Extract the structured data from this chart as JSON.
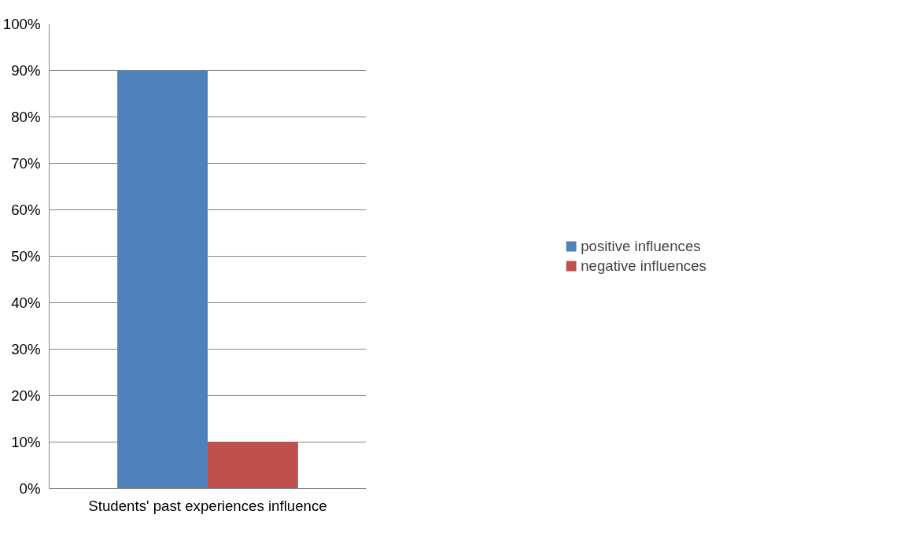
{
  "chart_data": {
    "type": "bar",
    "categories": [
      "Students' past experiences influence"
    ],
    "series": [
      {
        "name": "positive influences",
        "color": "#4f81bd",
        "values": [
          90
        ]
      },
      {
        "name": "negative influences",
        "color": "#c0504d",
        "values": [
          10
        ]
      }
    ],
    "ylim": [
      0,
      100
    ],
    "yticks": [
      {
        "value": 0,
        "label": "0%"
      },
      {
        "value": 10,
        "label": "10%"
      },
      {
        "value": 20,
        "label": "20%"
      },
      {
        "value": 30,
        "label": "30%"
      },
      {
        "value": 40,
        "label": "40%"
      },
      {
        "value": 50,
        "label": "50%"
      },
      {
        "value": 60,
        "label": "60%"
      },
      {
        "value": 70,
        "label": "70%"
      },
      {
        "value": 80,
        "label": "80%"
      },
      {
        "value": 90,
        "label": "90%"
      },
      {
        "value": 100,
        "label": "100%"
      }
    ],
    "grid": "y",
    "legend": "right"
  }
}
